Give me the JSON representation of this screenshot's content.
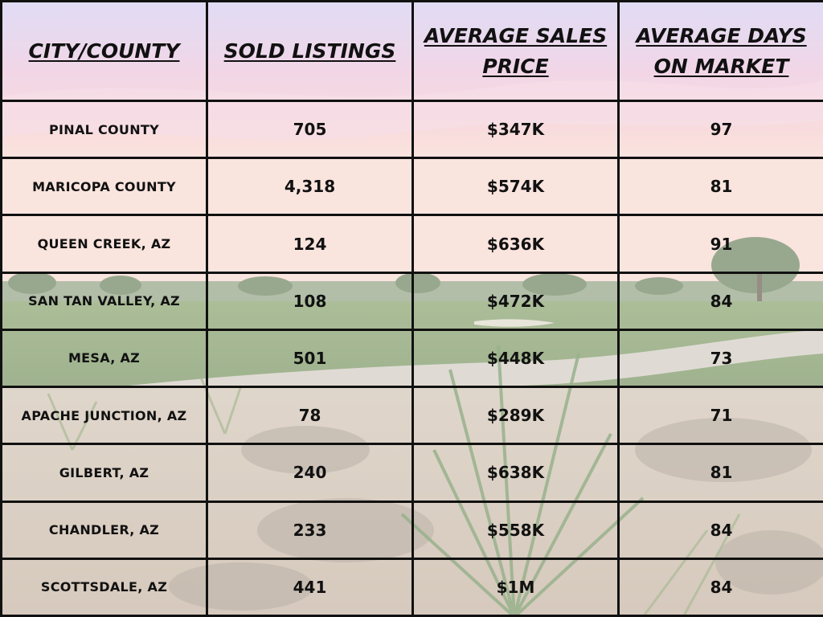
{
  "chart_data": {
    "type": "table",
    "columns": [
      "CITY/COUNTY",
      "SOLD LISTINGS",
      "AVERAGE SALES PRICE",
      "AVERAGE DAYS ON MARKET"
    ],
    "rows": [
      [
        "PINAL COUNTY",
        "705",
        "$347K",
        "97"
      ],
      [
        "MARICOPA COUNTY",
        "4,318",
        "$574K",
        "81"
      ],
      [
        "QUEEN CREEK, AZ",
        "124",
        "$636K",
        "91"
      ],
      [
        "SAN TAN VALLEY, AZ",
        "108",
        "$472K",
        "84"
      ],
      [
        "MESA, AZ",
        "501",
        "$448K",
        "73"
      ],
      [
        "APACHE JUNCTION, AZ",
        "78",
        "$289K",
        "71"
      ],
      [
        "GILBERT, AZ",
        "240",
        "$638K",
        "81"
      ],
      [
        "CHANDLER, AZ",
        "233",
        "$558K",
        "84"
      ],
      [
        "SCOTTSDALE, AZ",
        "441",
        "$1M",
        "84"
      ]
    ]
  }
}
